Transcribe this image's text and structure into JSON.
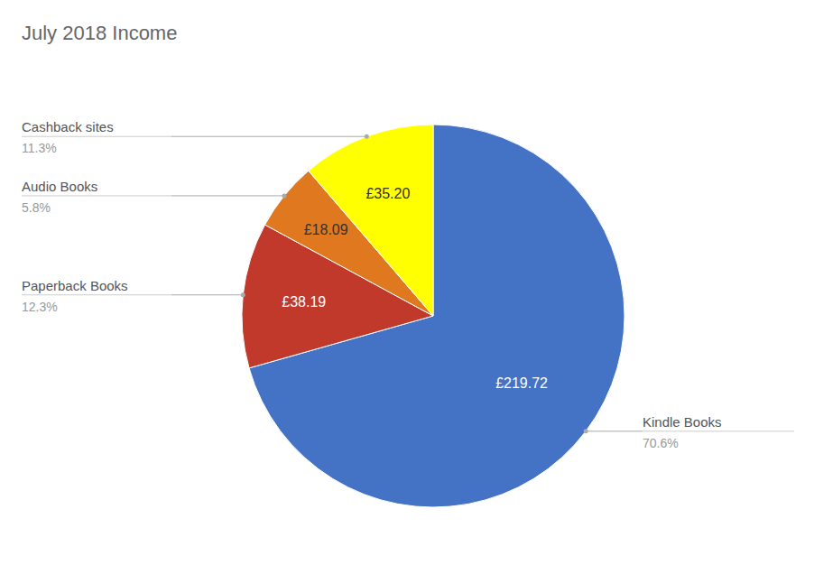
{
  "chart_data": {
    "type": "pie",
    "title": "July 2018 Income",
    "categories": [
      "Kindle Books",
      "Paperback Books",
      "Audio Books",
      "Cashback sites"
    ],
    "values": [
      70.6,
      12.3,
      5.8,
      11.3
    ],
    "value_labels": [
      "70.6%",
      "12.3%",
      "5.8%",
      "11.3%"
    ],
    "amounts": [
      219.72,
      38.19,
      18.09,
      35.2
    ],
    "amount_labels": [
      "£219.72",
      "£38.19",
      "£18.09",
      "£35.20"
    ],
    "colors": [
      "#4472C4",
      "#C0392B",
      "#E07820",
      "#FFFF00"
    ]
  }
}
